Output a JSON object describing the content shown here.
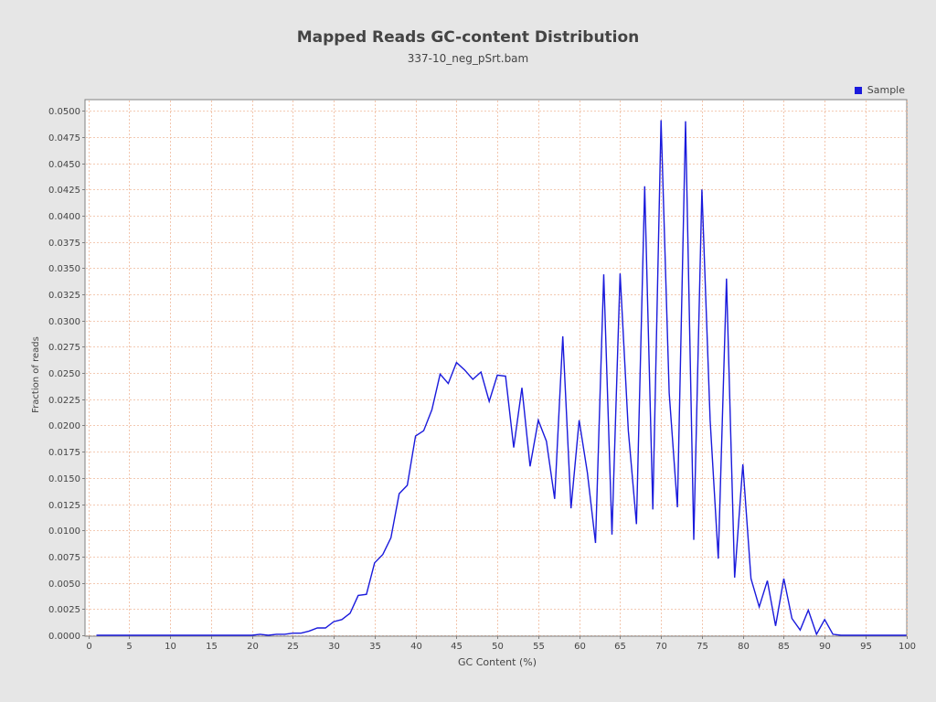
{
  "chart_data": {
    "type": "line",
    "title": "Mapped Reads GC-content Distribution",
    "subtitle": "337-10_neg_pSrt.bam",
    "xlabel": "GC Content (%)",
    "ylabel": "Fraction of reads",
    "xlim": [
      0,
      105
    ],
    "ylim": [
      0,
      0.0515
    ],
    "x_ticks": [
      0,
      5,
      10,
      15,
      20,
      25,
      30,
      35,
      40,
      45,
      50,
      55,
      60,
      65,
      70,
      75,
      80,
      85,
      90,
      95,
      100
    ],
    "y_ticks": [
      "0.0000",
      "0.0025",
      "0.0050",
      "0.0075",
      "0.0100",
      "0.0125",
      "0.0150",
      "0.0175",
      "0.0200",
      "0.0225",
      "0.0250",
      "0.0275",
      "0.0300",
      "0.0325",
      "0.0350",
      "0.0375",
      "0.0400",
      "0.0425",
      "0.0450",
      "0.0475",
      "0.0500"
    ],
    "grid": true,
    "legend_position": "top-right",
    "series": [
      {
        "name": "Sample",
        "color": "#1a1adc",
        "x": [
          1,
          2,
          3,
          4,
          5,
          6,
          7,
          8,
          9,
          10,
          11,
          12,
          13,
          14,
          15,
          16,
          17,
          18,
          19,
          20,
          21,
          22,
          23,
          24,
          25,
          26,
          27,
          28,
          29,
          30,
          31,
          32,
          33,
          34,
          35,
          36,
          37,
          38,
          39,
          40,
          41,
          42,
          43,
          44,
          45,
          46,
          47,
          48,
          49,
          50,
          51,
          52,
          53,
          54,
          55,
          56,
          57,
          58,
          59,
          60,
          61,
          62,
          63,
          64,
          65,
          66,
          67,
          68,
          69,
          70,
          71,
          72,
          73,
          74,
          75,
          76,
          77,
          78,
          79,
          80,
          81,
          82,
          83,
          84,
          85,
          86,
          87,
          88,
          89,
          90,
          91,
          92,
          93,
          94,
          95,
          96,
          97,
          98,
          99,
          100
        ],
        "y": [
          0,
          0,
          0,
          0,
          0,
          0,
          0,
          0,
          0,
          0,
          0,
          0,
          0,
          0,
          0,
          0,
          0,
          0,
          0,
          0,
          0.0001,
          0,
          0.0001,
          0.0001,
          0.0002,
          0.0002,
          0.0004,
          0.0007,
          0.0007,
          0.0013,
          0.0015,
          0.0021,
          0.0038,
          0.0039,
          0.0069,
          0.0077,
          0.0093,
          0.0135,
          0.0143,
          0.019,
          0.0195,
          0.0215,
          0.0249,
          0.024,
          0.026,
          0.0253,
          0.0244,
          0.0251,
          0.0223,
          0.0248,
          0.0247,
          0.0179,
          0.0236,
          0.0161,
          0.0205,
          0.0185,
          0.013,
          0.0285,
          0.0121,
          0.0205,
          0.0155,
          0.0088,
          0.0344,
          0.0096,
          0.0345,
          0.0195,
          0.0106,
          0.0428,
          0.012,
          0.0491,
          0.0231,
          0.0122,
          0.049,
          0.0091,
          0.0425,
          0.0205,
          0.0073,
          0.034,
          0.0055,
          0.0163,
          0.0054,
          0.0027,
          0.0052,
          0.0009,
          0.0054,
          0.0016,
          0.0005,
          0.0024,
          0.0001,
          0.0015,
          0.0001,
          0,
          0,
          0,
          0,
          0,
          0,
          0,
          0,
          0
        ]
      }
    ]
  }
}
